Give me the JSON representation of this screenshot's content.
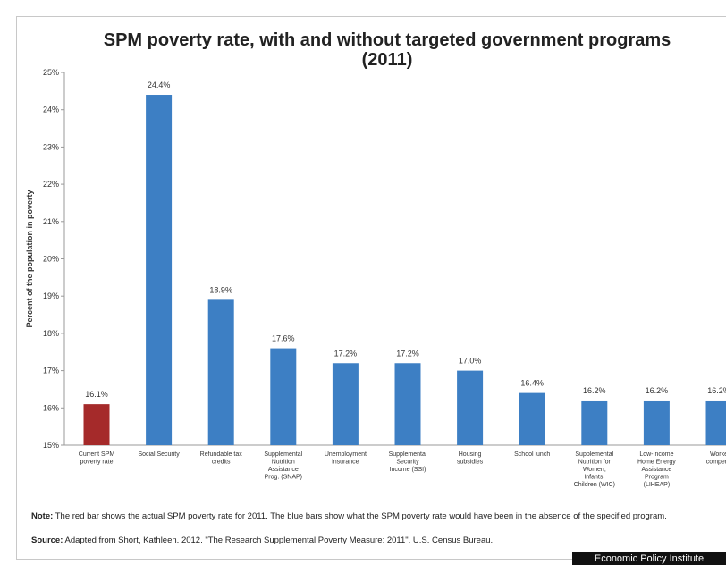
{
  "chart_data": {
    "type": "bar",
    "title_line1": "SPM poverty rate, with and without targeted government programs",
    "title_line2": "(2011)",
    "ylabel": "Percent of the population in poverty",
    "ylim": [
      15,
      25
    ],
    "yticks": [
      "15%",
      "16%",
      "17%",
      "18%",
      "19%",
      "20%",
      "21%",
      "22%",
      "23%",
      "24%",
      "25%"
    ],
    "grid": false,
    "categories": [
      [
        "Current SPM",
        "poverty rate"
      ],
      [
        "Social Security"
      ],
      [
        "Refundable tax",
        "credits"
      ],
      [
        "Supplemental",
        "Nutrition",
        "Assistance",
        "Prog. (SNAP)"
      ],
      [
        "Unemployment",
        "insurance"
      ],
      [
        "Supplemental",
        "Security",
        "Income (SSI)"
      ],
      [
        "Housing",
        "subsidies"
      ],
      [
        "School lunch"
      ],
      [
        "Supplemental",
        "Nutrition for",
        "Women,",
        "Infants,",
        "Children (WIC)"
      ],
      [
        "Low-Income",
        "Home Energy",
        "Assistance",
        "Program",
        "(LIHEAP)"
      ],
      [
        "Worke",
        "compens"
      ]
    ],
    "values": [
      16.1,
      24.4,
      18.9,
      17.6,
      17.2,
      17.2,
      17.0,
      16.4,
      16.2,
      16.2,
      16.2
    ],
    "value_labels": [
      "16.1%",
      "24.4%",
      "18.9%",
      "17.6%",
      "17.2%",
      "17.2%",
      "17.0%",
      "16.4%",
      "16.2%",
      "16.2%",
      "16.2%"
    ],
    "colors": {
      "current": "#a52a2a",
      "counterfactual": "#3d7fc4"
    }
  },
  "note": {
    "label": "Note:",
    "text": "The red bar shows the actual SPM poverty rate for 2011. The blue bars show what the SPM poverty rate would have been in the absence of the specified program."
  },
  "source": {
    "label": "Source:",
    "text": "Adapted from Short, Kathleen. 2012. \"The Research Supplemental Poverty Measure: 2011\". U.S. Census Bureau."
  },
  "credit": "Economic Policy Institute"
}
